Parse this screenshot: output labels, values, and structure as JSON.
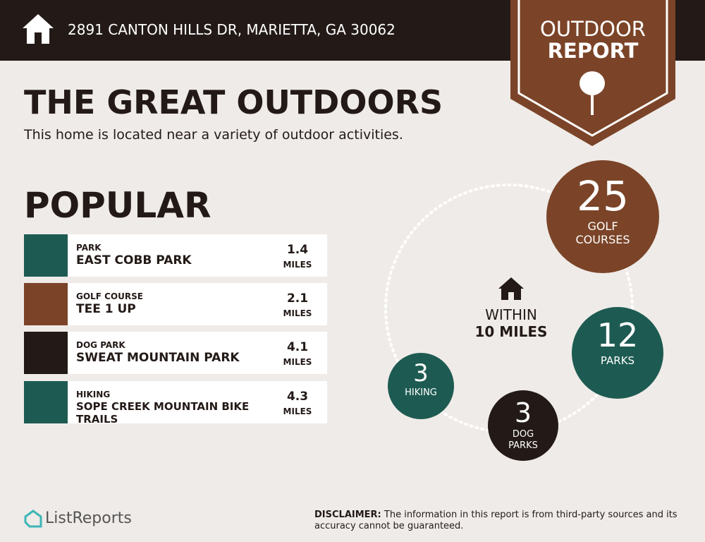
{
  "header": {
    "address": "2891 CANTON HILLS DR, MARIETTA, GA 30062"
  },
  "badge": {
    "line1": "OUTDOOR",
    "line2": "REPORT"
  },
  "title": "THE GREAT OUTDOORS",
  "subtitle": "This home is located near a variety of outdoor activities.",
  "popular": {
    "heading": "POPULAR",
    "items": [
      {
        "category": "PARK",
        "name": "EAST COBB PARK",
        "distance": 1.4,
        "unit": "MILES"
      },
      {
        "category": "GOLF COURSE",
        "name": "TEE 1 UP",
        "distance": 2.1,
        "unit": "MILES"
      },
      {
        "category": "DOG PARK",
        "name": "SWEAT MOUNTAIN PARK",
        "distance": 4.1,
        "unit": "MILES"
      },
      {
        "category": "HIKING",
        "name": "SOPE CREEK MOUNTAIN BIKE TRAILS",
        "distance": 4.3,
        "unit": "MILES"
      }
    ]
  },
  "summary": {
    "center_line1": "WITHIN",
    "center_line2": "10 MILES",
    "counts": [
      {
        "count": 25,
        "label": "GOLF COURSES"
      },
      {
        "count": 12,
        "label": "PARKS"
      },
      {
        "count": 3,
        "label": "DOG PARKS"
      },
      {
        "count": 3,
        "label": "HIKING"
      }
    ]
  },
  "footer": {
    "brand": "ListReports",
    "disclaimer_label": "DISCLAIMER:",
    "disclaimer": "The information in this report is from third-party sources and its accuracy cannot be guaranteed."
  }
}
